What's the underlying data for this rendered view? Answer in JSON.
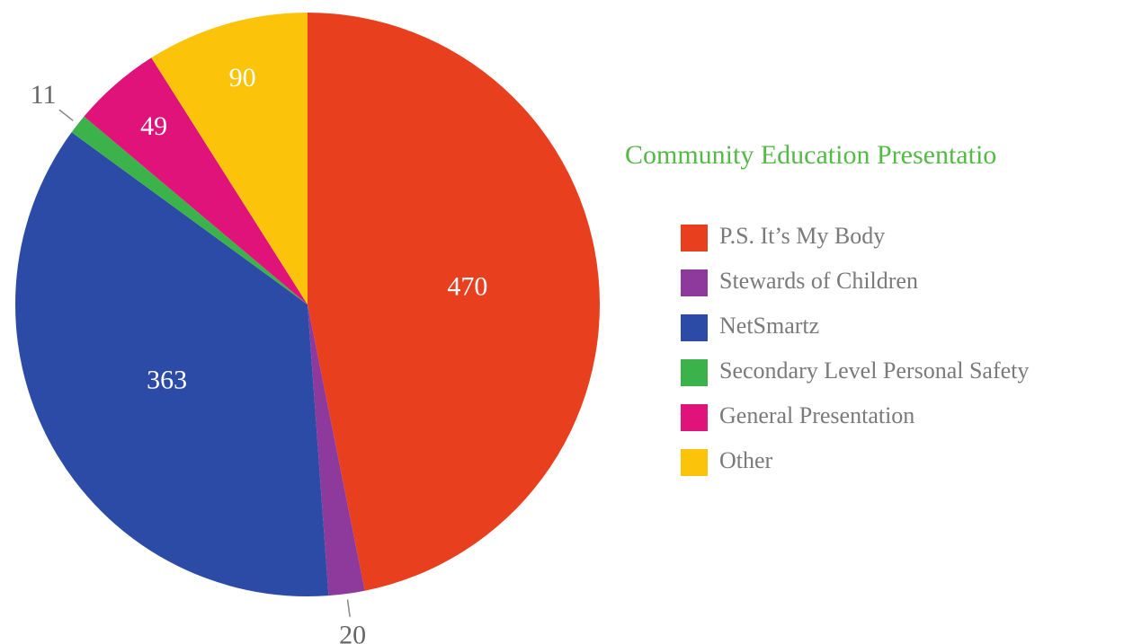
{
  "chart_data": {
    "type": "pie",
    "title": "Community Education Presentatio",
    "categories": [
      "P.S. It’s My Body",
      "Stewards of Children",
      "NetSmartz",
      "Secondary Level Personal Safety",
      "General Presentation",
      "Other"
    ],
    "values": [
      470,
      20,
      363,
      11,
      49,
      90
    ],
    "colors": [
      "#e8401f",
      "#8e3a9c",
      "#2b4ba6",
      "#3cb24a",
      "#e0137a",
      "#fcc30b"
    ]
  }
}
